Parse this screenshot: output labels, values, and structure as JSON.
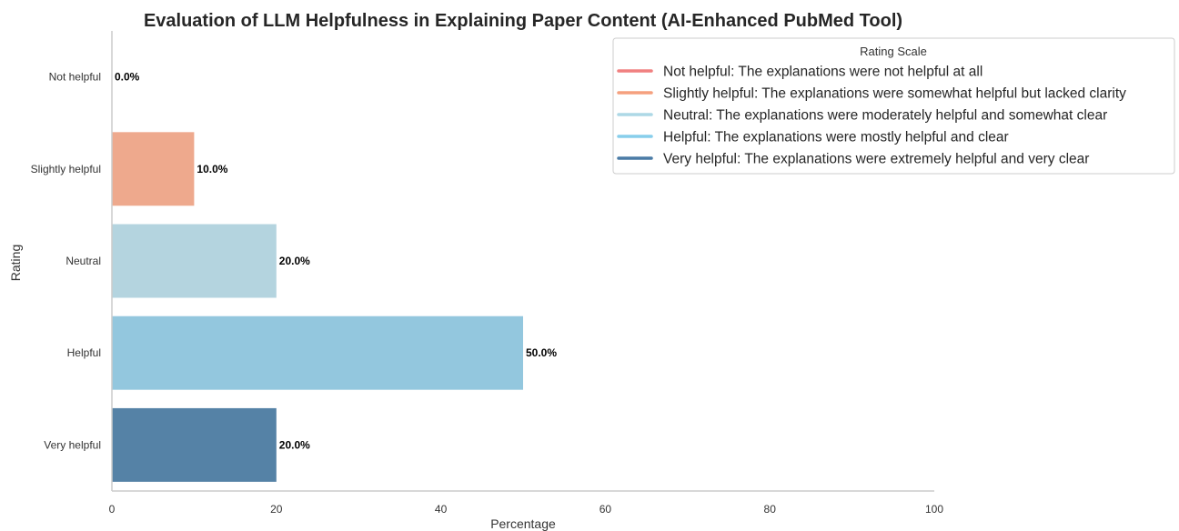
{
  "chart_data": {
    "type": "bar",
    "orientation": "horizontal",
    "title": "Evaluation of LLM Helpfulness in Explaining Paper Content (AI-Enhanced PubMed Tool)",
    "xlabel": "Percentage",
    "ylabel": "Rating",
    "xlim": [
      0,
      100
    ],
    "xticks": [
      0,
      20,
      40,
      60,
      80,
      100
    ],
    "grid": false,
    "categories": [
      "Not helpful",
      "Slightly helpful",
      "Neutral",
      "Helpful",
      "Very helpful"
    ],
    "values": [
      0.0,
      10.0,
      20.0,
      50.0,
      20.0
    ],
    "value_labels": [
      "0.0%",
      "10.0%",
      "20.0%",
      "50.0%",
      "20.0%"
    ],
    "colors": [
      "#f08080",
      "#eea98d",
      "#b4d4df",
      "#93c7de",
      "#5582a6"
    ],
    "legend": {
      "title": "Rating Scale",
      "placement": "top-right",
      "entries": [
        {
          "label": "Not helpful: The explanations were not helpful at all",
          "color": "#f08080"
        },
        {
          "label": "Slightly helpful: The explanations were somewhat helpful but lacked clarity",
          "color": "#f5a07e"
        },
        {
          "label": "Neutral: The explanations were moderately helpful and somewhat clear",
          "color": "#add8e6"
        },
        {
          "label": "Helpful: The explanations were mostly helpful and clear",
          "color": "#87ceeb"
        },
        {
          "label": "Very helpful: The explanations were extremely helpful and very clear",
          "color": "#4a7ba6"
        }
      ]
    }
  }
}
